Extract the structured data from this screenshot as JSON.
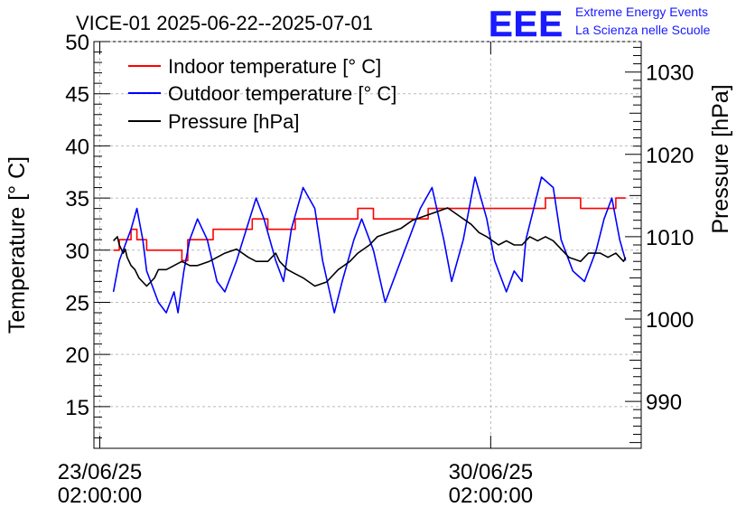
{
  "chart_data": {
    "type": "line",
    "title": "VICE-01 2025-06-22--2025-07-01",
    "logo": {
      "text": "EEE",
      "line1": "Extreme Energy Events",
      "line2": "La Scienza nelle Scuole",
      "color": "#1a1aff"
    },
    "ylabel_left": "Temperature [° C]",
    "ylabel_right": "Pressure [hPa]",
    "ylim_left": [
      11,
      50
    ],
    "ylim_right": [
      984.3,
      1033.7
    ],
    "yticks_left": [
      "15",
      "20",
      "25",
      "30",
      "35",
      "40",
      "45",
      "50"
    ],
    "yticks_right": [
      "990",
      "1000",
      "1010",
      "1020",
      "1030"
    ],
    "xlim": [
      -0.15,
      13.85
    ],
    "xticks": [
      {
        "x": 0,
        "line1": "23/06/25",
        "line2": "02:00:00"
      },
      {
        "x": 10,
        "line1": "30/06/25",
        "line2": "02:00:00"
      }
    ],
    "grid": true,
    "legend_position": "top-left",
    "series": [
      {
        "name": "Indoor temperature [° C]",
        "color": "#ff0000",
        "axis": "left",
        "step": true,
        "x": [
          0.35,
          0.5,
          0.65,
          0.8,
          0.95,
          1.1,
          1.2,
          1.5,
          1.8,
          2.1,
          2.25,
          2.6,
          2.9,
          3.2,
          3.4,
          3.9,
          4.3,
          5.0,
          5.6,
          6.1,
          6.6,
          7.0,
          7.5,
          8.0,
          8.4,
          9.0,
          9.6,
          10.1,
          10.5,
          10.9,
          11.4,
          11.9,
          12.3,
          12.8,
          13.2,
          13.45
        ],
        "y": [
          30,
          31,
          31,
          32,
          31,
          31,
          30,
          30,
          30,
          29,
          31,
          31,
          32,
          32,
          32,
          33,
          32,
          33,
          33,
          33,
          34,
          33,
          33,
          33,
          34,
          34,
          34,
          34,
          34,
          34,
          35,
          35,
          34,
          34,
          35,
          35
        ]
      },
      {
        "name": "Outdoor temperature [° C]",
        "color": "#0000ff",
        "axis": "left",
        "x": [
          0.35,
          0.5,
          0.8,
          0.95,
          1.1,
          1.2,
          1.3,
          1.5,
          1.7,
          1.9,
          2.0,
          2.15,
          2.3,
          2.5,
          2.75,
          3.0,
          3.2,
          3.5,
          3.75,
          4.0,
          4.2,
          4.5,
          4.7,
          4.9,
          5.2,
          5.5,
          5.7,
          6.0,
          6.2,
          6.5,
          6.7,
          7.0,
          7.3,
          7.6,
          7.9,
          8.2,
          8.5,
          8.8,
          9.0,
          9.3,
          9.6,
          9.9,
          10.1,
          10.4,
          10.6,
          10.8,
          10.9,
          11.1,
          11.3,
          11.6,
          11.8,
          12.1,
          12.4,
          12.7,
          12.9,
          13.1,
          13.3,
          13.45
        ],
        "y": [
          26,
          29,
          32,
          34,
          31,
          28,
          27,
          25,
          24,
          26,
          24,
          28,
          31,
          33,
          31,
          27,
          26,
          29,
          32,
          35,
          33,
          29,
          27,
          32,
          36,
          34,
          29,
          24,
          27,
          31,
          33,
          30,
          25,
          28,
          31,
          34,
          36,
          31,
          27,
          31,
          37,
          33,
          29,
          26,
          28,
          27,
          31,
          34,
          37,
          36,
          31,
          28,
          27,
          30,
          33,
          35,
          31,
          29
        ]
      },
      {
        "name": "Pressure [hPa]",
        "color": "#000000",
        "axis": "right",
        "x": [
          0.35,
          0.45,
          0.5,
          0.6,
          0.65,
          0.7,
          0.8,
          0.9,
          1.0,
          1.1,
          1.2,
          1.3,
          1.4,
          1.5,
          1.7,
          1.9,
          2.1,
          2.3,
          2.5,
          2.8,
          3.0,
          3.2,
          3.5,
          3.8,
          4.0,
          4.3,
          4.5,
          4.6,
          4.8,
          5.0,
          5.2,
          5.5,
          5.8,
          6.1,
          6.4,
          6.6,
          6.9,
          7.1,
          7.4,
          7.7,
          8.0,
          8.3,
          8.6,
          8.9,
          9.2,
          9.5,
          9.7,
          9.9,
          10.2,
          10.4,
          10.6,
          10.8,
          11.0,
          11.2,
          11.4,
          11.6,
          11.8,
          12.0,
          12.3,
          12.5,
          12.8,
          13.0,
          13.2,
          13.3,
          13.4,
          13.45
        ],
        "y": [
          1009.5,
          1010.0,
          1009.0,
          1008.0,
          1008.5,
          1007.5,
          1006.5,
          1006.0,
          1005.0,
          1004.5,
          1004.0,
          1004.5,
          1005.0,
          1006.0,
          1006.0,
          1006.5,
          1007.0,
          1006.5,
          1006.5,
          1007.0,
          1007.5,
          1008.0,
          1008.5,
          1007.5,
          1007.0,
          1007.0,
          1008.0,
          1007.0,
          1006.0,
          1005.5,
          1005.0,
          1004.0,
          1004.5,
          1006.0,
          1007.0,
          1008.0,
          1009.0,
          1010.0,
          1010.5,
          1011.0,
          1012.0,
          1012.5,
          1013.0,
          1013.5,
          1012.5,
          1011.5,
          1010.5,
          1010.0,
          1009.0,
          1009.5,
          1009.0,
          1009.0,
          1010.0,
          1009.5,
          1010.0,
          1009.5,
          1008.5,
          1007.5,
          1007.0,
          1008.0,
          1008.0,
          1007.5,
          1008.0,
          1007.5,
          1007.0,
          1007.5
        ]
      }
    ]
  }
}
